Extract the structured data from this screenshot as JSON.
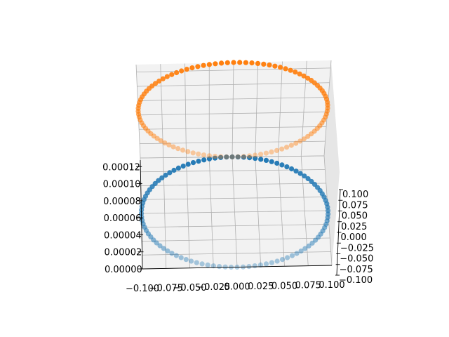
{
  "chart_data": {
    "type": "scatter",
    "projection": "3d",
    "title": "",
    "xlabel": "",
    "ylabel": "",
    "zlabel": "",
    "grid": true,
    "xlim": [
      -0.1,
      0.1
    ],
    "ylim": [
      -0.1,
      0.1
    ],
    "zlim": [
      0,
      0.00013
    ],
    "x_ticks": [
      "-0.100",
      "-0.075",
      "-0.050",
      "-0.025",
      "0.000",
      "0.025",
      "0.050",
      "0.075",
      "0.100"
    ],
    "y_ticks": [
      "0.100",
      "0.075",
      "0.050",
      "0.025",
      "0.000",
      "-0.025",
      "-0.050",
      "-0.075",
      "-0.100"
    ],
    "z_ticks": [
      "0.00000",
      "0.00002",
      "0.00004",
      "0.00006",
      "0.00008",
      "0.00010",
      "0.00012"
    ],
    "series": [
      {
        "shape": "circle",
        "radius": 0.1,
        "z": 0.0,
        "points": 100,
        "color": "#1f77b4"
      },
      {
        "shape": "circle",
        "radius": 0.1,
        "z": 0.00013,
        "points": 100,
        "color": "#ff7f0e"
      }
    ]
  }
}
